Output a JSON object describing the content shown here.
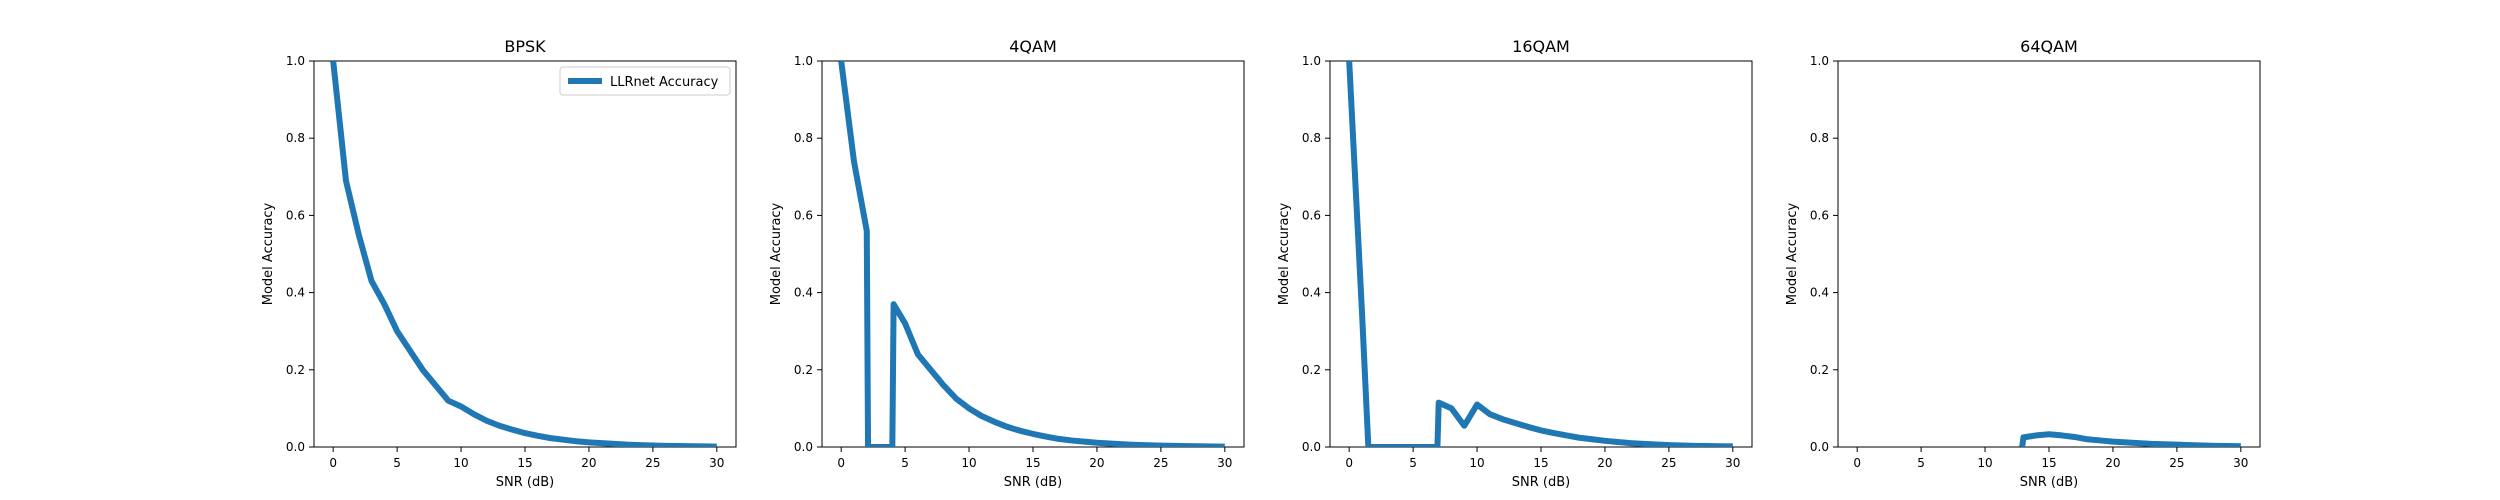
{
  "chart_data": [
    {
      "type": "line",
      "title": "BPSK",
      "xlabel": "SNR (dB)",
      "ylabel": "Model Accuracy",
      "xlim": [
        -1.5,
        31.5
      ],
      "ylim": [
        0,
        1
      ],
      "xticks": [
        "0",
        "5",
        "10",
        "15",
        "20",
        "25",
        "30"
      ],
      "yticks": [
        "0.0",
        "0.2",
        "0.4",
        "0.6",
        "0.8",
        "1.0"
      ],
      "grid": false,
      "legend": {
        "entries": [
          "LLRnet Accuracy"
        ],
        "placement": "upper right"
      },
      "series": [
        {
          "name": "LLRnet Accuracy",
          "color": "#1f77b4",
          "x": [
            0,
            1,
            2,
            3,
            4,
            5,
            6,
            7,
            8,
            9,
            10,
            11,
            12,
            13,
            14,
            15,
            16,
            17,
            18,
            19,
            20,
            21,
            22,
            23,
            24,
            25,
            26,
            27,
            28,
            29,
            30
          ],
          "y": [
            1.0,
            0.69,
            0.55,
            0.43,
            0.37,
            0.3,
            0.25,
            0.2,
            0.16,
            0.12,
            0.105,
            0.085,
            0.068,
            0.055,
            0.045,
            0.036,
            0.029,
            0.023,
            0.019,
            0.015,
            0.012,
            0.01,
            0.008,
            0.006,
            0.005,
            0.004,
            0.003,
            0.0025,
            0.002,
            0.0015,
            0.001
          ]
        }
      ]
    },
    {
      "type": "line",
      "title": "4QAM",
      "xlabel": "SNR (dB)",
      "ylabel": "Model Accuracy",
      "xlim": [
        -1.5,
        31.5
      ],
      "ylim": [
        0,
        1
      ],
      "xticks": [
        "0",
        "5",
        "10",
        "15",
        "20",
        "25",
        "30"
      ],
      "yticks": [
        "0.0",
        "0.2",
        "0.4",
        "0.6",
        "0.8",
        "1.0"
      ],
      "grid": false,
      "series": [
        {
          "color": "#1f77b4",
          "x": [
            0,
            1,
            2,
            2.1,
            3,
            4,
            4.1,
            5,
            6,
            7,
            8,
            9,
            10,
            11,
            12,
            13,
            14,
            15,
            16,
            17,
            18,
            19,
            20,
            21,
            22,
            23,
            24,
            25,
            26,
            27,
            28,
            29,
            30
          ],
          "y": [
            1.0,
            0.74,
            0.56,
            0.0,
            0.0,
            0.0,
            0.37,
            0.32,
            0.24,
            0.2,
            0.16,
            0.125,
            0.1,
            0.08,
            0.065,
            0.052,
            0.042,
            0.034,
            0.027,
            0.021,
            0.017,
            0.014,
            0.011,
            0.009,
            0.007,
            0.0055,
            0.0045,
            0.0035,
            0.0028,
            0.0022,
            0.0018,
            0.0014,
            0.001
          ]
        }
      ]
    },
    {
      "type": "line",
      "title": "16QAM",
      "xlabel": "SNR (dB)",
      "ylabel": "Model Accuracy",
      "xlim": [
        -1.5,
        31.5
      ],
      "ylim": [
        0,
        1
      ],
      "xticks": [
        "0",
        "5",
        "10",
        "15",
        "20",
        "25",
        "30"
      ],
      "yticks": [
        "0.0",
        "0.2",
        "0.4",
        "0.6",
        "0.8",
        "1.0"
      ],
      "grid": false,
      "series": [
        {
          "color": "#1f77b4",
          "x": [
            0,
            1,
            1.5,
            2,
            3,
            4,
            5,
            6,
            6.9,
            7,
            8,
            9,
            10,
            11,
            12,
            13,
            14,
            15,
            16,
            17,
            18,
            19,
            20,
            21,
            22,
            23,
            24,
            25,
            26,
            27,
            28,
            29,
            30
          ],
          "y": [
            1.0,
            0.35,
            0.0,
            0.0,
            0.0,
            0.0,
            0.0,
            0.0,
            0.0,
            0.115,
            0.1,
            0.055,
            0.11,
            0.085,
            0.072,
            0.062,
            0.052,
            0.043,
            0.036,
            0.03,
            0.024,
            0.02,
            0.016,
            0.013,
            0.01,
            0.008,
            0.0065,
            0.005,
            0.004,
            0.003,
            0.0025,
            0.002,
            0.0015
          ]
        }
      ]
    },
    {
      "type": "line",
      "title": "64QAM",
      "xlabel": "SNR (dB)",
      "ylabel": "Model Accuracy",
      "xlim": [
        -1.5,
        31.5
      ],
      "ylim": [
        0,
        1
      ],
      "xticks": [
        "0",
        "5",
        "10",
        "15",
        "20",
        "25",
        "30"
      ],
      "yticks": [
        "0.0",
        "0.2",
        "0.4",
        "0.6",
        "0.8",
        "1.0"
      ],
      "grid": false,
      "series": [
        {
          "color": "#1f77b4",
          "x": [
            12.9,
            13,
            14,
            15,
            16,
            17,
            18,
            19,
            20,
            21,
            22,
            23,
            24,
            25,
            26,
            27,
            28,
            29,
            30
          ],
          "y": [
            0.0,
            0.025,
            0.03,
            0.033,
            0.03,
            0.026,
            0.02,
            0.017,
            0.014,
            0.012,
            0.01,
            0.008,
            0.007,
            0.006,
            0.005,
            0.004,
            0.003,
            0.0025,
            0.002
          ]
        }
      ]
    }
  ]
}
